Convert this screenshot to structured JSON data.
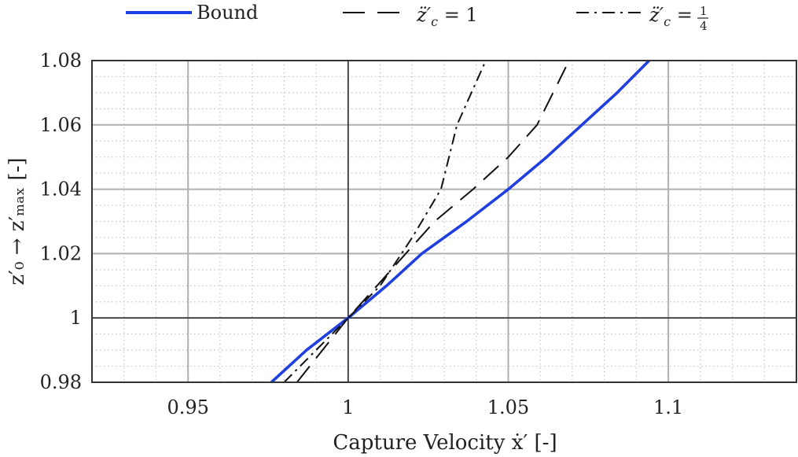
{
  "chart_data": {
    "type": "line",
    "title": "",
    "xlabel": "Capture Velocity ẋ′ [-]",
    "ylabel": "z′₀ → z′ₘₐₓ [-]",
    "xlim": [
      0.92,
      1.14
    ],
    "ylim": [
      0.98,
      1.08
    ],
    "x_ticks": [
      0.95,
      1.0,
      1.05,
      1.1
    ],
    "x_tick_labels": [
      "0.95",
      "1",
      "1.05",
      "1.1"
    ],
    "y_ticks": [
      0.98,
      1.0,
      1.02,
      1.04,
      1.06,
      1.08
    ],
    "y_tick_labels": [
      "0.98",
      "1",
      "1.02",
      "1.04",
      "1.06",
      "1.08"
    ],
    "grid": true,
    "minor_grid": true,
    "legend_position": "top-outside",
    "series": [
      {
        "name": "Bound",
        "color": "#1f3fe0",
        "dash": "solid",
        "points": [
          [
            0.976,
            0.98
          ],
          [
            0.987,
            0.99
          ],
          [
            1.0,
            1.0
          ],
          [
            1.012,
            1.01
          ],
          [
            1.023,
            1.02
          ],
          [
            1.037,
            1.03
          ],
          [
            1.05,
            1.04
          ],
          [
            1.062,
            1.05
          ],
          [
            1.073,
            1.06
          ],
          [
            1.084,
            1.07
          ],
          [
            1.094,
            1.08
          ]
        ]
      },
      {
        "name": "z̈′c = 1",
        "color": "#111111",
        "dash": "dashed",
        "points": [
          [
            0.984,
            0.98
          ],
          [
            0.992,
            0.99
          ],
          [
            1.0,
            1.0
          ],
          [
            1.009,
            1.01
          ],
          [
            1.018,
            1.02
          ],
          [
            1.027,
            1.03
          ],
          [
            1.039,
            1.04
          ],
          [
            1.05,
            1.05
          ],
          [
            1.059,
            1.06
          ],
          [
            1.068,
            1.078
          ]
        ]
      },
      {
        "name": "z̈′c = 1/4",
        "color": "#111111",
        "dash": "dashdot",
        "points": [
          [
            0.98,
            0.98
          ],
          [
            0.99,
            0.99
          ],
          [
            1.0,
            1.0
          ],
          [
            1.01,
            1.01
          ],
          [
            1.02,
            1.025
          ],
          [
            1.029,
            1.04
          ],
          [
            1.034,
            1.06
          ],
          [
            1.043,
            1.08
          ]
        ]
      }
    ]
  },
  "legend": {
    "items": [
      {
        "text": "Bound"
      },
      {
        "prefix": "z̈′",
        "sub": "c",
        "suffix": " = 1"
      },
      {
        "prefix": "z̈′",
        "sub": "c",
        "suffix": " = ",
        "frac_num": "1",
        "frac_den": "4"
      }
    ]
  }
}
